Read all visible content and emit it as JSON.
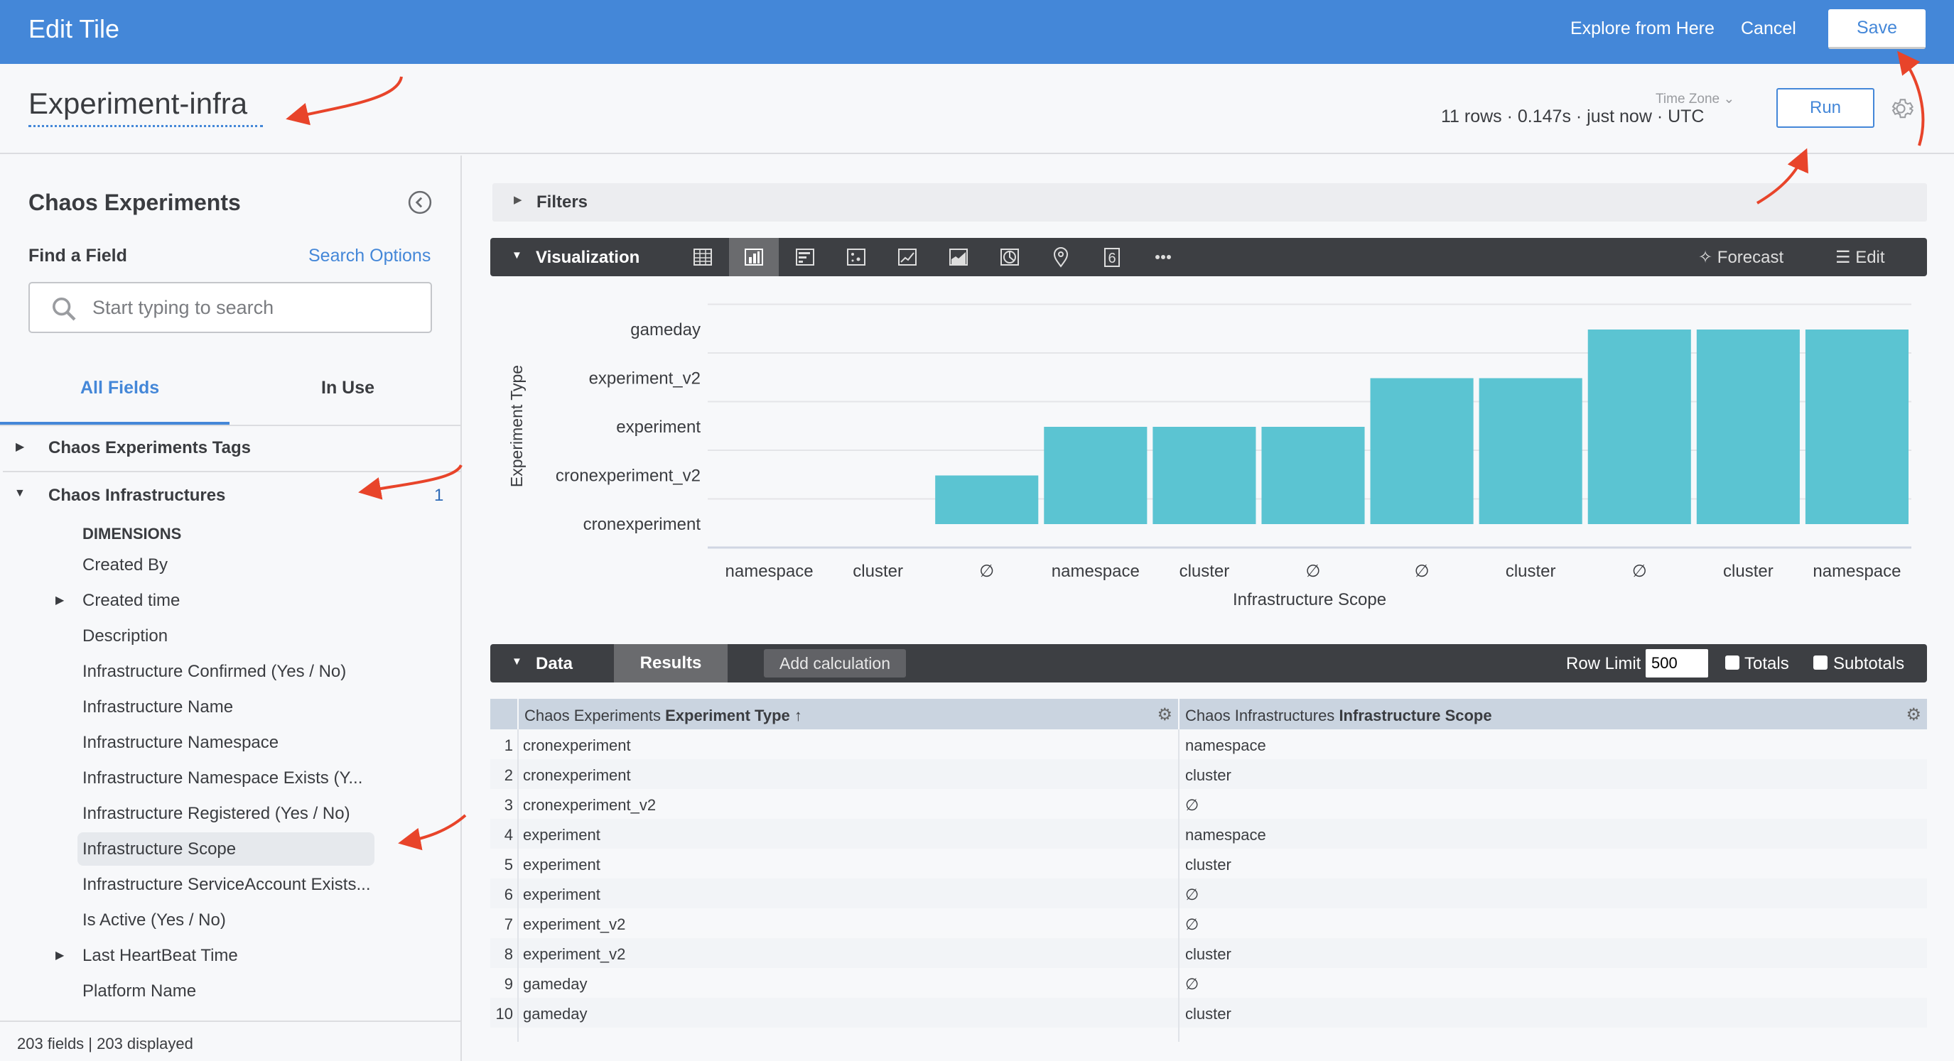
{
  "header": {
    "title": "Edit Tile",
    "explore_label": "Explore from Here",
    "cancel_label": "Cancel",
    "save_label": "Save",
    "brand_color": "#4487d8"
  },
  "tile": {
    "title": "Experiment-infra",
    "time_zone_label": "Time Zone",
    "status": "11 rows · 0.147s · just now · UTC",
    "run_label": "Run"
  },
  "sidebar": {
    "title": "Chaos Experiments",
    "find_label": "Find a Field",
    "search_options_label": "Search Options",
    "search_placeholder": "Start typing to search",
    "tabs": [
      {
        "label": "All Fields",
        "active": true
      },
      {
        "label": "In Use",
        "active": false
      }
    ],
    "groups": [
      {
        "label": "Chaos Experiments Tags",
        "expanded": false
      },
      {
        "label": "Chaos Infrastructures",
        "expanded": true,
        "in_use_count": "1"
      }
    ],
    "section_label": "DIMENSIONS",
    "fields": [
      {
        "label": "Created By"
      },
      {
        "label": "Created time",
        "expandable": true
      },
      {
        "label": "Description"
      },
      {
        "label": "Infrastructure Confirmed (Yes / No)"
      },
      {
        "label": "Infrastructure Name"
      },
      {
        "label": "Infrastructure Namespace"
      },
      {
        "label": "Infrastructure Namespace Exists (Y..."
      },
      {
        "label": "Infrastructure Registered (Yes / No)"
      },
      {
        "label": "Infrastructure Scope",
        "selected": true
      },
      {
        "label": "Infrastructure ServiceAccount Exists..."
      },
      {
        "label": "Is Active (Yes / No)"
      },
      {
        "label": "Last HeartBeat Time",
        "expandable": true
      },
      {
        "label": "Platform Name"
      }
    ],
    "footer": "203 fields | 203 displayed"
  },
  "filters": {
    "label": "Filters"
  },
  "visualization": {
    "label": "Visualization",
    "types": [
      {
        "icon": "table-icon"
      },
      {
        "icon": "column-chart-icon",
        "active": true
      },
      {
        "icon": "bar-chart-icon"
      },
      {
        "icon": "scatter-icon"
      },
      {
        "icon": "line-chart-icon"
      },
      {
        "icon": "area-chart-icon"
      },
      {
        "icon": "pie-chart-icon"
      },
      {
        "icon": "map-pin-icon"
      },
      {
        "icon": "single-value-icon",
        "text": "6"
      },
      {
        "icon": "more-icon"
      }
    ],
    "forecast_label": "Forecast",
    "edit_label": "Edit"
  },
  "chart_data": {
    "type": "bar",
    "xlabel": "Infrastructure Scope",
    "ylabel": "Experiment Type",
    "y_categories": [
      "cronexperiment",
      "cronexperiment_v2",
      "experiment",
      "experiment_v2",
      "gameday"
    ],
    "categories": [
      "namespace",
      "cluster",
      "∅",
      "namespace",
      "cluster",
      "∅",
      "∅",
      "cluster",
      "∅",
      "cluster",
      "namespace"
    ],
    "values": [
      "cronexperiment",
      "cronexperiment",
      "cronexperiment_v2",
      "experiment",
      "experiment",
      "experiment",
      "experiment_v2",
      "experiment_v2",
      "gameday",
      "gameday",
      "gameday"
    ],
    "bar_color": "#5bc4d2",
    "grid": true,
    "legend": "none"
  },
  "data_panel": {
    "label": "Data",
    "results_tab": "Results",
    "add_calc_label": "Add calculation",
    "row_limit_label": "Row Limit",
    "row_limit": "500",
    "totals_label": "Totals",
    "subtotals_label": "Subtotals",
    "columns": [
      {
        "prefix": "Chaos Experiments ",
        "name": "Experiment Type",
        "sort": "↑"
      },
      {
        "prefix": "Chaos Infrastructures ",
        "name": "Infrastructure Scope",
        "sort": ""
      }
    ],
    "rows": [
      [
        "1",
        "cronexperiment",
        "namespace"
      ],
      [
        "2",
        "cronexperiment",
        "cluster"
      ],
      [
        "3",
        "cronexperiment_v2",
        "∅"
      ],
      [
        "4",
        "experiment",
        "namespace"
      ],
      [
        "5",
        "experiment",
        "cluster"
      ],
      [
        "6",
        "experiment",
        "∅"
      ],
      [
        "7",
        "experiment_v2",
        "∅"
      ],
      [
        "8",
        "experiment_v2",
        "cluster"
      ],
      [
        "9",
        "gameday",
        "∅"
      ],
      [
        "10",
        "gameday",
        "cluster"
      ]
    ]
  },
  "annotation_color": "#e8442a"
}
